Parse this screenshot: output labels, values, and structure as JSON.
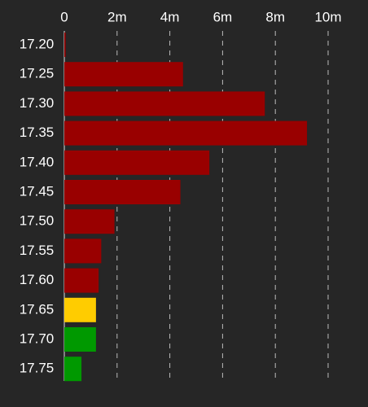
{
  "chart_data": {
    "type": "hbar",
    "categories": [
      "17.20",
      "17.25",
      "17.30",
      "17.35",
      "17.40",
      "17.45",
      "17.50",
      "17.55",
      "17.60",
      "17.65",
      "17.70",
      "17.75"
    ],
    "values": [
      50000,
      4500000,
      7600000,
      9200000,
      5500000,
      4400000,
      1900000,
      1400000,
      1300000,
      1200000,
      1200000,
      650000
    ],
    "colors": [
      "#990000",
      "#990000",
      "#990000",
      "#990000",
      "#990000",
      "#990000",
      "#990000",
      "#990000",
      "#990000",
      "#ffcc00",
      "#009900",
      "#009900"
    ],
    "xlim": [
      0,
      10000000
    ],
    "xticks": [
      0,
      {
        "value": 2000000,
        "label": "2m"
      },
      {
        "value": 4000000,
        "label": "4m"
      },
      {
        "value": 6000000,
        "label": "6m"
      },
      {
        "value": 8000000,
        "label": "8m"
      },
      {
        "value": 10000000,
        "label": "10m"
      }
    ],
    "grid": true
  }
}
